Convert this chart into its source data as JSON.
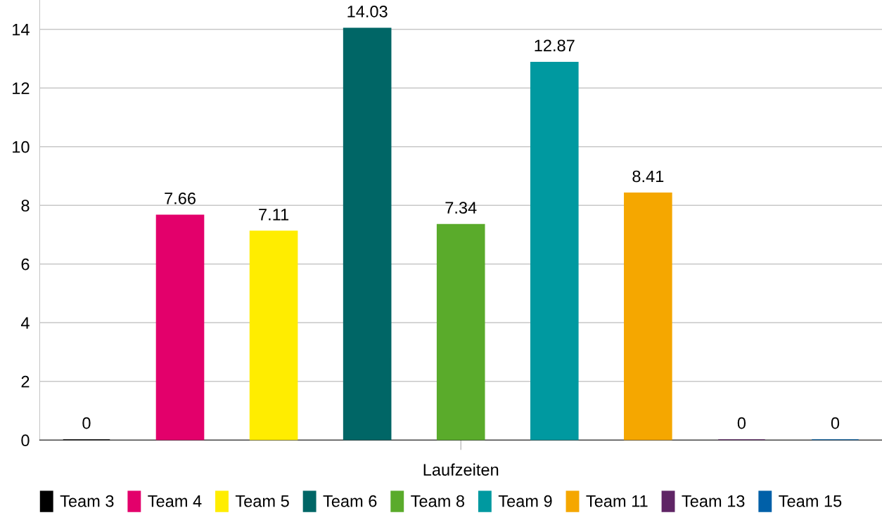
{
  "chart_data": {
    "type": "bar",
    "categories": [
      "Laufzeiten"
    ],
    "series": [
      {
        "name": "Team 3",
        "color": "#000000",
        "values": [
          0
        ]
      },
      {
        "name": "Team 4",
        "color": "#e3006b",
        "values": [
          7.66
        ]
      },
      {
        "name": "Team 5",
        "color": "#ffed00",
        "values": [
          7.11
        ]
      },
      {
        "name": "Team 6",
        "color": "#006666",
        "values": [
          14.03
        ]
      },
      {
        "name": "Team 8",
        "color": "#5aab2b",
        "values": [
          7.34
        ]
      },
      {
        "name": "Team 9",
        "color": "#0099a0",
        "values": [
          12.87
        ]
      },
      {
        "name": "Team 11",
        "color": "#f5a700",
        "values": [
          8.41
        ]
      },
      {
        "name": "Team 13",
        "color": "#5f2565",
        "values": [
          0
        ]
      },
      {
        "name": "Team 15",
        "color": "#0060a8",
        "values": [
          0
        ]
      }
    ],
    "ylim": [
      0,
      15
    ],
    "yticks": [
      0,
      2,
      4,
      6,
      8,
      10,
      12,
      14
    ],
    "grid": "y",
    "legend": "bottom",
    "data_labels": true
  }
}
